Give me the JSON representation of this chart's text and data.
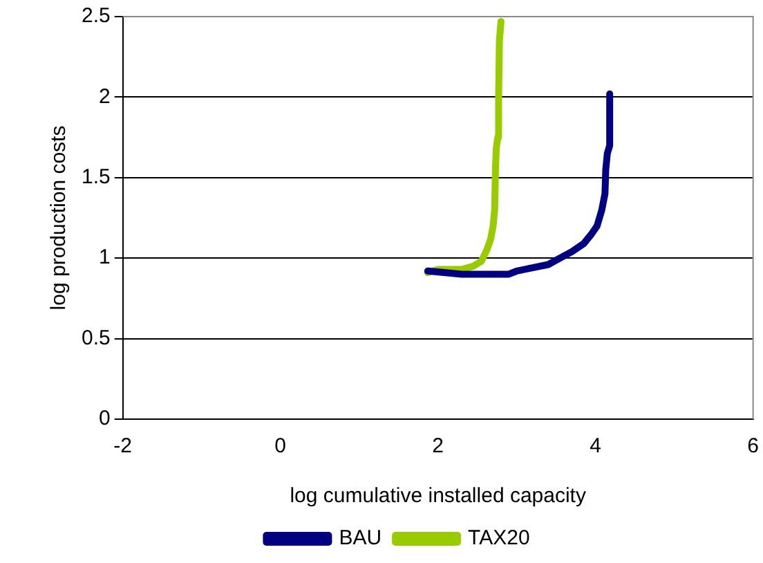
{
  "chart_data": {
    "type": "line",
    "xlabel": "log cumulative installed capacity",
    "ylabel": "log production costs",
    "xlim": [
      -2,
      6
    ],
    "xticks": [
      -2,
      0,
      2,
      4,
      6
    ],
    "ylim": [
      0,
      2.5
    ],
    "yticks": [
      0,
      0.5,
      1,
      1.5,
      2,
      2.5
    ],
    "grid": "y",
    "legend": "bottom",
    "marker": "none",
    "line_style": "solid",
    "series": [
      {
        "name": "BAU",
        "color": "#000080",
        "x": [
          1.87,
          2.3,
          2.9,
          3.0,
          3.2,
          3.4,
          3.55,
          3.7,
          3.85,
          3.95,
          4.02,
          4.08,
          4.12,
          4.13,
          4.15,
          4.18,
          4.18
        ],
        "values": [
          0.92,
          0.9,
          0.9,
          0.92,
          0.94,
          0.96,
          1.0,
          1.04,
          1.09,
          1.15,
          1.2,
          1.3,
          1.4,
          1.55,
          1.65,
          1.7,
          2.02
        ]
      },
      {
        "name": "TAX20",
        "color": "#99cc00",
        "x": [
          1.87,
          2.0,
          2.3,
          2.45,
          2.55,
          2.62,
          2.67,
          2.7,
          2.72,
          2.73,
          2.74,
          2.76,
          2.77,
          2.78,
          2.8
        ],
        "values": [
          0.91,
          0.93,
          0.93,
          0.95,
          0.98,
          1.05,
          1.12,
          1.2,
          1.3,
          1.55,
          1.68,
          1.75,
          2.0,
          2.35,
          2.47
        ]
      }
    ]
  }
}
